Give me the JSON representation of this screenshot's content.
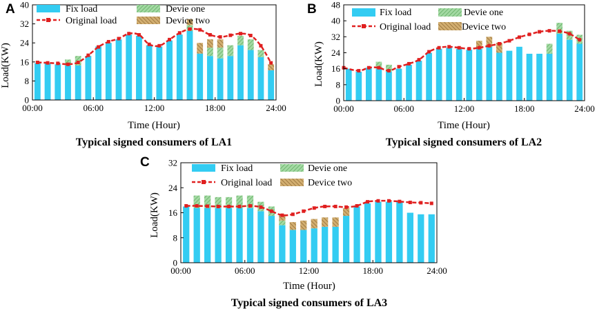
{
  "colors": {
    "fix": "#33ccf2",
    "devOne": "#8fcf8f",
    "devTwo": "#c09a5a",
    "line": "#e02020"
  },
  "legend": {
    "fix": "Fix load",
    "devOne": "Devie one",
    "original": "Original load",
    "devTwo": "Device two"
  },
  "chart_data": [
    {
      "id": "LA1",
      "letter": "A",
      "type": "bar",
      "title": "Typical signed consumers of LA1",
      "xlabel": "Time (Hour)",
      "ylabel": "Load(KW)",
      "ylim": [
        0,
        40
      ],
      "yticks": [
        0,
        8,
        16,
        24,
        32,
        40
      ],
      "xlim": [
        0,
        24
      ],
      "xticks": [
        "00:00",
        "06:00",
        "12:00",
        "18:00",
        "24:00"
      ],
      "hours": [
        0,
        1,
        2,
        3,
        4,
        5,
        6,
        7,
        8,
        9,
        10,
        11,
        12,
        13,
        14,
        15,
        16,
        17,
        18,
        19,
        20,
        21,
        22,
        23
      ],
      "fix": [
        15.5,
        15.5,
        15,
        14.5,
        14.5,
        18.5,
        22.5,
        24,
        25.5,
        27.5,
        27,
        23,
        22.5,
        25,
        27.5,
        29,
        19.5,
        18.5,
        17.5,
        18.5,
        23,
        21,
        18,
        12.5
      ],
      "devOne": [
        0,
        0,
        0,
        2.5,
        4,
        0,
        0,
        0,
        0,
        0,
        0,
        0,
        0,
        0,
        0,
        2.5,
        0,
        3.5,
        4.5,
        4.5,
        4,
        4.5,
        3,
        0
      ],
      "devTwo": [
        0,
        0,
        0,
        0,
        0,
        0,
        0,
        0,
        0,
        0,
        0,
        0,
        0,
        0,
        0,
        2.5,
        4.5,
        3.5,
        3.5,
        0,
        0,
        0,
        0,
        2.5
      ],
      "original": [
        15.8,
        15.6,
        15.4,
        15,
        15.8,
        18.8,
        22.3,
        24.5,
        25.8,
        27.9,
        27.4,
        23.4,
        22.8,
        25.4,
        28.2,
        29.8,
        29.5,
        27.4,
        26.5,
        27.2,
        27.9,
        27.1,
        22.8,
        15.6
      ],
      "lineStart": "bar"
    },
    {
      "id": "LA2",
      "letter": "B",
      "type": "bar",
      "title": "Typical signed consumers of LA2",
      "xlabel": "Time (Hour)",
      "ylabel": "Load(KW)",
      "ylim": [
        0,
        48
      ],
      "yticks": [
        0,
        8,
        16,
        24,
        32,
        40,
        48
      ],
      "xlim": [
        0,
        24
      ],
      "xticks": [
        "00:00",
        "06:00",
        "12:00",
        "18:00",
        "24:00"
      ],
      "hours": [
        0,
        1,
        2,
        3,
        4,
        5,
        6,
        7,
        8,
        9,
        10,
        11,
        12,
        13,
        14,
        15,
        16,
        17,
        18,
        19,
        20,
        21,
        22,
        23
      ],
      "fix": [
        16,
        14.5,
        16.5,
        16,
        14.5,
        16,
        18,
        20,
        24,
        26,
        26.5,
        26,
        25.5,
        26,
        27,
        24,
        25,
        27,
        23.5,
        23.5,
        23.5,
        33.5,
        30.5,
        28.5
      ],
      "devOne": [
        0,
        0,
        0,
        3.5,
        3.5,
        0,
        0,
        0,
        0,
        0,
        0,
        0,
        0,
        0,
        0,
        0,
        0,
        0,
        0,
        0,
        5,
        5.5,
        4.5,
        4.5
      ],
      "devTwo": [
        0,
        0,
        0,
        0,
        0,
        0,
        0,
        0,
        0,
        0,
        0,
        0,
        0,
        4,
        5,
        5,
        0,
        0,
        0,
        0,
        0,
        0,
        0,
        0
      ],
      "original": [
        16.5,
        15,
        16.5,
        16.5,
        15,
        17,
        18.5,
        20.5,
        24.5,
        26.5,
        27,
        26.5,
        26,
        26.5,
        27.5,
        28.5,
        30,
        31.8,
        33.2,
        34.5,
        35,
        34.8,
        33.5,
        30.5
      ],
      "lineStart": "axis"
    },
    {
      "id": "LA3",
      "letter": "C",
      "type": "bar",
      "title": "Typical signed consumers of LA3",
      "xlabel": "Time (Hour)",
      "ylabel": "Load(KW)",
      "ylim": [
        0,
        32
      ],
      "yticks": [
        0,
        8,
        16,
        24,
        32
      ],
      "xlim": [
        0,
        24
      ],
      "xticks": [
        "00:00",
        "06:00",
        "12:00",
        "18:00",
        "24:00"
      ],
      "hours": [
        0,
        1,
        2,
        3,
        4,
        5,
        6,
        7,
        8,
        9,
        10,
        11,
        12,
        13,
        14,
        15,
        16,
        17,
        18,
        19,
        20,
        21,
        22,
        23
      ],
      "fix": [
        18,
        17.5,
        17.5,
        17.5,
        17.5,
        17.5,
        17.5,
        16.5,
        15,
        12,
        10.5,
        10.5,
        11,
        11.5,
        11.5,
        15,
        18,
        19,
        19.5,
        19.5,
        19.5,
        16,
        15.5,
        15.5
      ],
      "devOne": [
        0,
        4,
        4,
        3.5,
        3.5,
        4,
        4,
        3,
        3,
        1.5,
        0,
        0,
        0,
        0,
        0,
        0,
        0,
        0,
        0,
        0,
        0,
        0,
        0,
        0
      ],
      "devTwo": [
        0,
        0,
        0,
        0,
        0,
        0,
        0,
        0,
        0,
        2,
        2.5,
        3,
        3,
        3,
        3,
        2.5,
        0,
        0,
        0,
        0,
        0,
        0,
        0,
        0
      ],
      "original": [
        18.2,
        18.2,
        18.1,
        18,
        18,
        18,
        18.2,
        17.8,
        16.5,
        15.2,
        15.5,
        16.5,
        17.5,
        18,
        18,
        17.8,
        18.2,
        19.5,
        19.8,
        19.8,
        19.6,
        19.3,
        19.2,
        19
      ],
      "lineStart": "bar"
    }
  ]
}
